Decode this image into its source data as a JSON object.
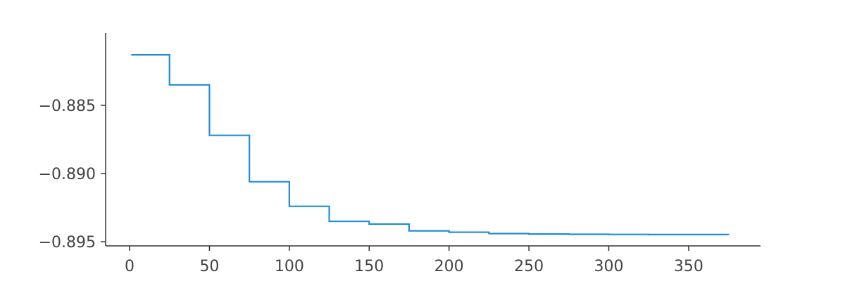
{
  "chart_data": {
    "type": "line",
    "title": "",
    "xlabel": "",
    "ylabel": "",
    "xlim": [
      -15,
      395
    ],
    "ylim": [
      -0.8953,
      -0.8797
    ],
    "x_ticks": [
      0,
      50,
      100,
      150,
      200,
      250,
      300,
      350
    ],
    "x_tick_labels": [
      "0",
      "50",
      "100",
      "150",
      "200",
      "250",
      "300",
      "350"
    ],
    "y_ticks": [
      -0.895,
      -0.89,
      -0.885
    ],
    "y_tick_labels": [
      "−0.895",
      "−0.890",
      "−0.885"
    ],
    "grid": false,
    "step": "post",
    "series": [
      {
        "color": "#1f8dd6",
        "x": [
          1,
          25,
          50,
          75,
          100,
          125,
          150,
          175,
          200,
          225,
          250,
          275,
          300,
          325,
          350,
          375
        ],
        "y": [
          -0.8813,
          -0.8835,
          -0.8872,
          -0.8906,
          -0.8924,
          -0.8935,
          -0.8937,
          -0.8942,
          -0.8943,
          -0.8944,
          -0.89443,
          -0.89445,
          -0.89446,
          -0.89447,
          -0.89447,
          -0.89448
        ]
      }
    ]
  }
}
